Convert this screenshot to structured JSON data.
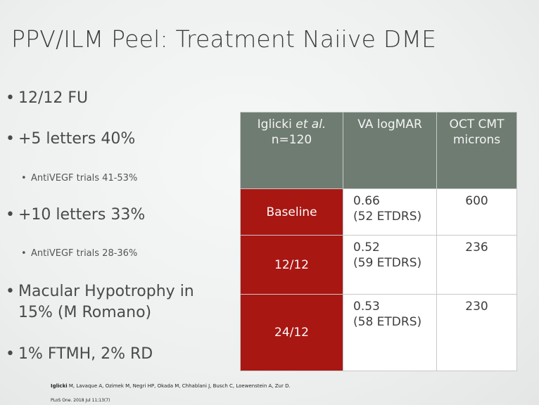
{
  "title": "PPV/ILM Peel: Treatment Naiive DME",
  "bullets": {
    "fu": "12/12 FU",
    "plus5": "+5 letters 40%",
    "antivegf1": "AntiVEGF trials 41-53%",
    "plus10": "+10 letters 33%",
    "antivegf2": "AntiVEGF trials 28-36%",
    "macular": "Macular Hypotrophy in 15% (M Romano)",
    "ftmh": "1% FTMH, 2% RD"
  },
  "bullet_symbol": "•",
  "table": {
    "header_author": "Iglicki ",
    "header_etal": "et al.",
    "header_n": "n=120",
    "header_va": "VA logMAR",
    "header_oct_line1": "OCT CMT",
    "header_oct_line2": "microns",
    "rows": [
      {
        "label": "Baseline",
        "va": "0.66",
        "etdrs": "(52 ETDRS)",
        "oct": "600"
      },
      {
        "label": "12/12",
        "va": "0.52",
        "etdrs": "(59 ETDRS)",
        "oct": "236"
      },
      {
        "label": "24/12",
        "va": "0.53",
        "etdrs": "(58 ETDRS)",
        "oct": "230"
      }
    ]
  },
  "reference": {
    "lead_author": "Iglicki",
    "authors": " M, Lavaque A, Ozimek M, Negri HP, Okada M, Chhablani J, Busch C, Loewenstein A, Zur D.",
    "journal": "PLoS One. 2018 Jul 11;13(7)"
  },
  "colors": {
    "header_bg": "#6f7c72",
    "label_bg": "#a81712",
    "cell_bg": "#ffffff"
  }
}
